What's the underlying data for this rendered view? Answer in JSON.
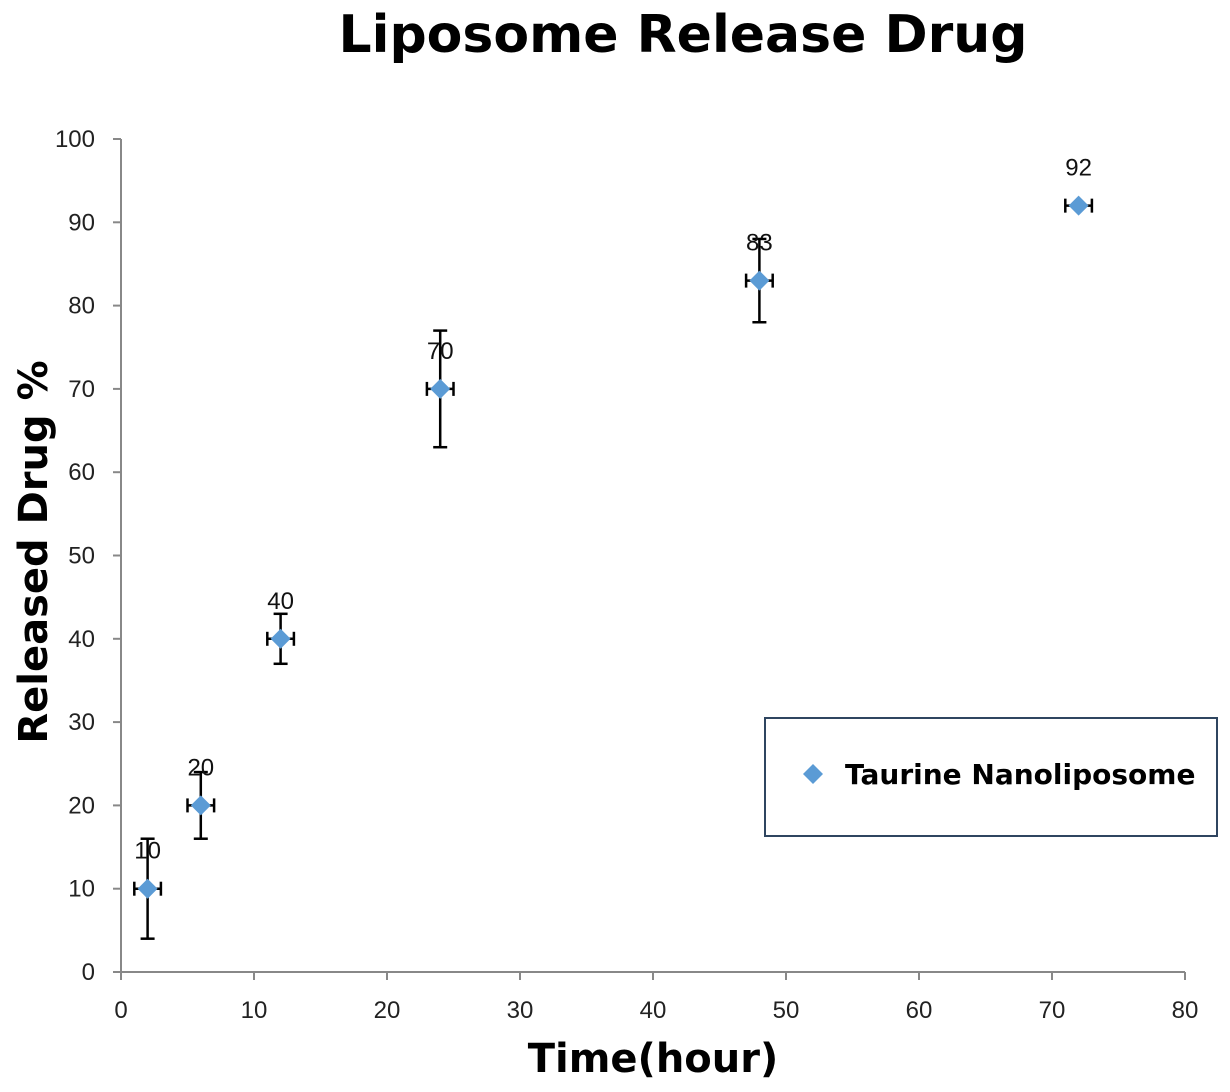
{
  "chart_data": {
    "type": "scatter",
    "title": "Liposome Release Drug",
    "xlabel": "Time(hour)",
    "ylabel": "Released Drug %",
    "xlim": [
      0,
      80
    ],
    "ylim": [
      0,
      100
    ],
    "x_ticks": [
      "0",
      "10",
      "20",
      "30",
      "40",
      "50",
      "60",
      "70",
      "80"
    ],
    "y_ticks": [
      "0",
      "10",
      "20",
      "30",
      "40",
      "50",
      "60",
      "70",
      "80",
      "90",
      "100"
    ],
    "grid": false,
    "legend_position": "right",
    "series": [
      {
        "name": "Taurine Nanoliposome",
        "color": "#5b9bd5",
        "marker": "diamond",
        "points": [
          {
            "x": 2,
            "y": 10,
            "label": "10",
            "y_err_plus": 6,
            "y_err_minus": 6,
            "x_err": 1
          },
          {
            "x": 6,
            "y": 20,
            "label": "20",
            "y_err_plus": 4,
            "y_err_minus": 4,
            "x_err": 1
          },
          {
            "x": 12,
            "y": 40,
            "label": "40",
            "y_err_plus": 3,
            "y_err_minus": 3,
            "x_err": 1
          },
          {
            "x": 24,
            "y": 70,
            "label": "70",
            "y_err_plus": 7,
            "y_err_minus": 7,
            "x_err": 1
          },
          {
            "x": 48,
            "y": 83,
            "label": "83",
            "y_err_plus": 5,
            "y_err_minus": 5,
            "x_err": 1
          },
          {
            "x": 72,
            "y": 92,
            "label": "92",
            "y_err_plus": 0,
            "y_err_minus": 0,
            "x_err": 1
          }
        ]
      }
    ]
  }
}
